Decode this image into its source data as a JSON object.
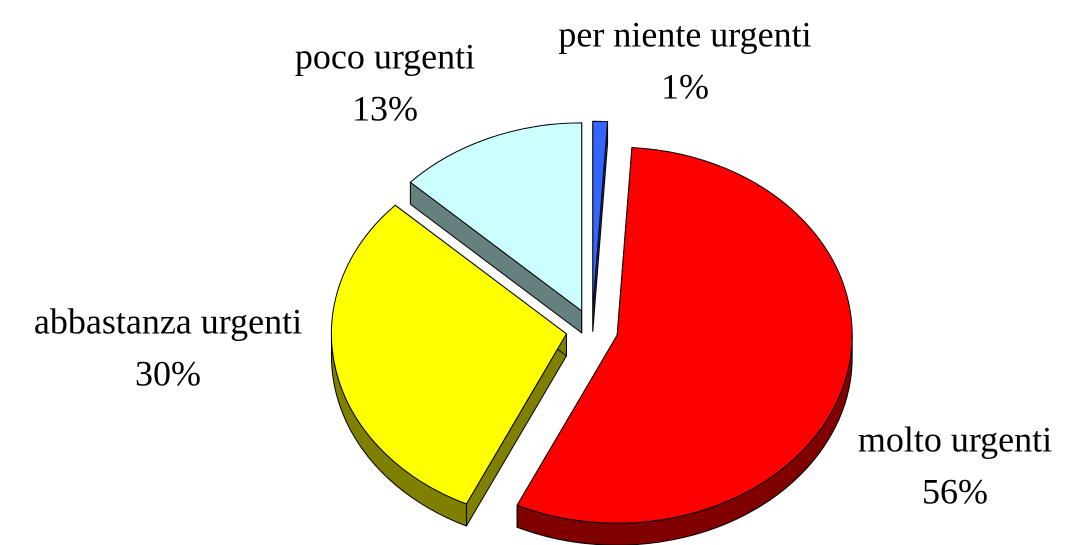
{
  "chart_data": {
    "type": "pie",
    "categories": [
      "per niente urgenti",
      "molto urgenti",
      "abbastanza urgenti",
      "poco urgenti"
    ],
    "values": [
      1,
      56,
      30,
      13
    ],
    "value_labels": [
      "1%",
      "56%",
      "30%",
      "13%"
    ],
    "colors": [
      "#3366ff",
      "#ff0000",
      "#ffff00",
      "#ccffff"
    ]
  }
}
